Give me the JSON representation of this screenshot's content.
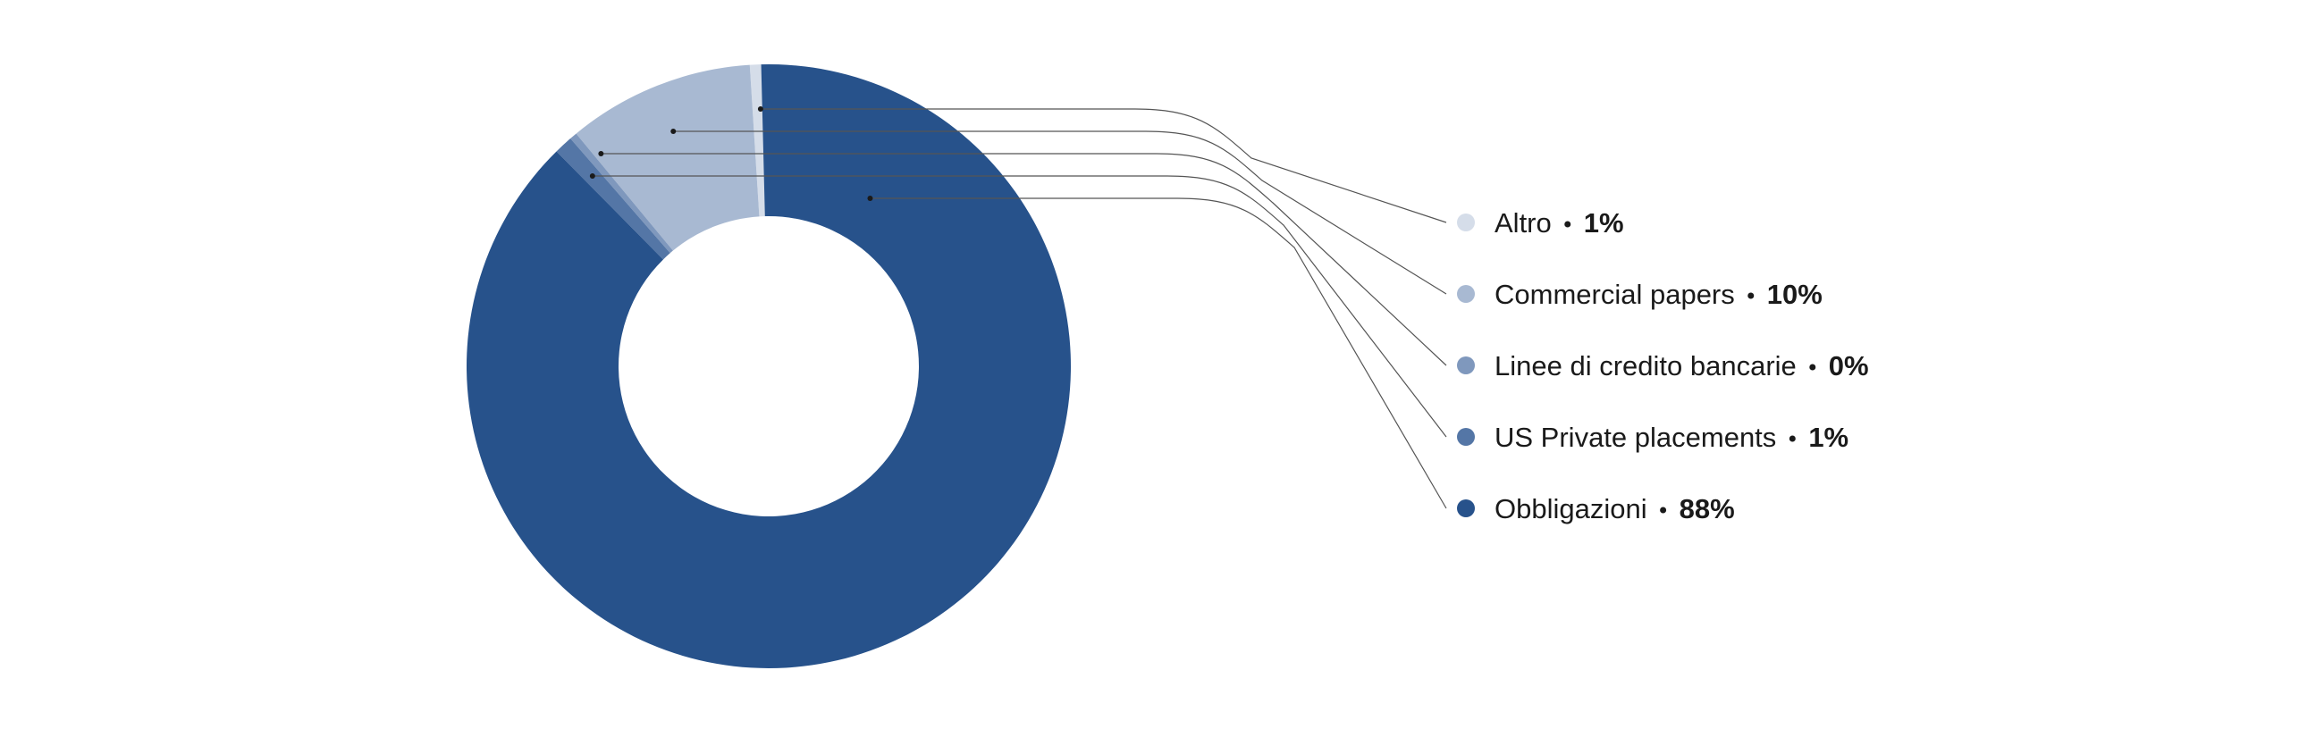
{
  "chart_data": {
    "type": "pie",
    "donut": true,
    "categories": [
      "Altro",
      "Commercial papers",
      "Linee di credito bancarie",
      "US Private placements",
      "Obbligazioni"
    ],
    "values": [
      1,
      10,
      0,
      1,
      88
    ],
    "value_labels": [
      "1%",
      "10%",
      "0%",
      "1%",
      "88%"
    ],
    "colors": [
      "#d5dde9",
      "#a8b9d2",
      "#7f98bd",
      "#5476a6",
      "#27528b"
    ],
    "legend_position": "right"
  }
}
